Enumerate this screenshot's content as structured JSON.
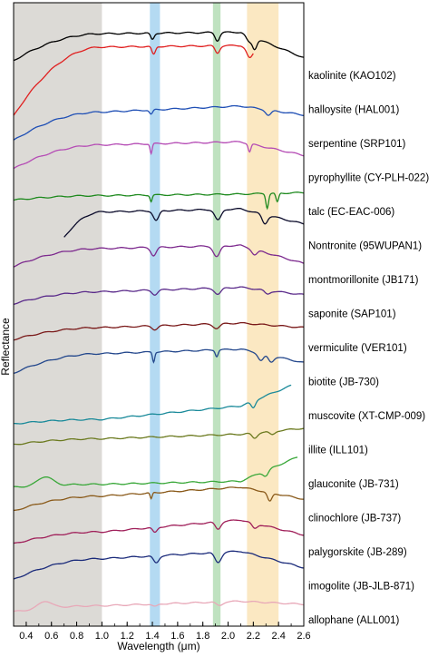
{
  "chart_data": {
    "type": "line",
    "xlabel": "Wavelength (μm)",
    "ylabel": "Reflectance",
    "xlim": [
      0.3,
      2.6
    ],
    "xticks": [
      "0.4",
      "0.6",
      "0.8",
      "1.0",
      "1.2",
      "1.4",
      "1.6",
      "1.8",
      "2.0",
      "2.2",
      "2.4",
      "2.6"
    ],
    "grid": false,
    "y_axis_ticks": false,
    "shaded_bands": [
      {
        "x": [
          0.3,
          1.0
        ],
        "color": "#dcdad6"
      },
      {
        "x": [
          1.38,
          1.46
        ],
        "color": "#b4daf2"
      },
      {
        "x": [
          1.88,
          1.94
        ],
        "color": "#bfe2c0"
      },
      {
        "x": [
          2.15,
          2.4
        ],
        "color": "#fbe8c2"
      }
    ],
    "series": [
      {
        "name": "kaolinite (KAO102)",
        "color": "#000000",
        "x_range": [
          0.3,
          2.6
        ],
        "start": 0.78,
        "rise": 0.96,
        "level": 0.97,
        "end": 0.8,
        "features": [
          {
            "x": 1.4,
            "d": 0.35,
            "w": 0.02
          },
          {
            "x": 1.915,
            "d": 0.45,
            "w": 0.025
          },
          {
            "x": 2.165,
            "d": 0.35,
            "w": 0.03
          },
          {
            "x": 2.21,
            "d": 0.6,
            "w": 0.025
          }
        ]
      },
      {
        "name": "halloysite (HAL001)",
        "color": "#e01f1f",
        "x_range": [
          0.3,
          2.2
        ],
        "start": 0.4,
        "rise": 0.86,
        "level": 0.87,
        "end": 0.7,
        "features": [
          {
            "x": 1.41,
            "d": 0.45,
            "w": 0.02
          },
          {
            "x": 1.915,
            "d": 0.4,
            "w": 0.025
          },
          {
            "x": 2.17,
            "d": 0.5,
            "w": 0.03
          }
        ]
      },
      {
        "name": "serpentine (SRP101)",
        "color": "#1f4fb5",
        "x_range": [
          0.3,
          2.6
        ],
        "start": 0.55,
        "rise": 0.74,
        "level": 0.78,
        "end": 0.72,
        "features": [
          {
            "x": 1.39,
            "d": 0.25,
            "w": 0.018
          },
          {
            "x": 2.32,
            "d": 0.3,
            "w": 0.03
          }
        ]
      },
      {
        "name": "pyrophyllite (CY-PLH-022)",
        "color": "#b54cb5",
        "x_range": [
          0.3,
          2.6
        ],
        "start": 0.55,
        "rise": 0.71,
        "level": 0.73,
        "end": 0.64,
        "features": [
          {
            "x": 1.39,
            "d": 0.55,
            "w": 0.012
          },
          {
            "x": 2.17,
            "d": 0.45,
            "w": 0.015
          }
        ]
      },
      {
        "name": "talc (EC-EAC-006)",
        "color": "#1f8a1f",
        "x_range": [
          0.3,
          2.6
        ],
        "start": 0.63,
        "rise": 0.66,
        "level": 0.67,
        "end": 0.68,
        "features": [
          {
            "x": 1.39,
            "d": 0.35,
            "w": 0.012
          },
          {
            "x": 2.31,
            "d": 0.8,
            "w": 0.015
          },
          {
            "x": 2.39,
            "d": 0.5,
            "w": 0.015
          }
        ]
      },
      {
        "name": "Nontronite (95WUPAN1)",
        "color": "#0a0a2a",
        "x_range": [
          0.7,
          2.6
        ],
        "start": 0.43,
        "rise": 0.6,
        "level": 0.62,
        "end": 0.52,
        "features": [
          {
            "x": 1.43,
            "d": 0.55,
            "w": 0.03
          },
          {
            "x": 1.92,
            "d": 0.6,
            "w": 0.035
          },
          {
            "x": 2.29,
            "d": 0.5,
            "w": 0.03
          }
        ]
      },
      {
        "name": "montmorillonite (JB171)",
        "color": "#7d2a8e",
        "x_range": [
          0.3,
          2.6
        ],
        "start": 0.43,
        "rise": 0.55,
        "level": 0.57,
        "end": 0.45,
        "features": [
          {
            "x": 1.41,
            "d": 0.45,
            "w": 0.03
          },
          {
            "x": 1.91,
            "d": 0.6,
            "w": 0.035
          },
          {
            "x": 2.21,
            "d": 0.3,
            "w": 0.03
          }
        ]
      },
      {
        "name": "saponite (SAP101)",
        "color": "#5a2a8a",
        "x_range": [
          0.3,
          2.6
        ],
        "start": 0.38,
        "rise": 0.46,
        "level": 0.49,
        "end": 0.44,
        "features": [
          {
            "x": 1.42,
            "d": 0.25,
            "w": 0.03
          },
          {
            "x": 1.92,
            "d": 0.35,
            "w": 0.035
          },
          {
            "x": 2.31,
            "d": 0.2,
            "w": 0.03
          }
        ]
      },
      {
        "name": "vermiculite (VER101)",
        "color": "#7a1a1a",
        "x_range": [
          0.3,
          2.6
        ],
        "start": 0.36,
        "rise": 0.44,
        "level": 0.47,
        "end": 0.44,
        "features": [
          {
            "x": 1.42,
            "d": 0.2,
            "w": 0.03
          },
          {
            "x": 1.91,
            "d": 0.25,
            "w": 0.035
          }
        ]
      },
      {
        "name": "biotite (JB-730)",
        "color": "#23478c",
        "x_range": [
          0.3,
          2.6
        ],
        "start": 0.25,
        "rise": 0.38,
        "level": 0.41,
        "end": 0.32,
        "features": [
          {
            "x": 1.41,
            "d": 0.55,
            "w": 0.012
          },
          {
            "x": 1.91,
            "d": 0.35,
            "w": 0.015
          },
          {
            "x": 2.26,
            "d": 0.4,
            "w": 0.03
          },
          {
            "x": 2.34,
            "d": 0.35,
            "w": 0.03
          }
        ]
      },
      {
        "name": "muscovite (XT-CMP-009)",
        "color": "#1a8a9a",
        "x_range": [
          0.3,
          2.5
        ],
        "start": 0.15,
        "rise": 0.18,
        "level": 0.27,
        "end": 0.44,
        "features": [
          {
            "x": 2.2,
            "d": 0.4,
            "w": 0.025
          }
        ]
      },
      {
        "name": "illite (ILL101)",
        "color": "#6b7a1f",
        "x_range": [
          0.3,
          2.6
        ],
        "start": 0.2,
        "rise": 0.24,
        "level": 0.27,
        "end": 0.31,
        "features": [
          {
            "x": 2.21,
            "d": 0.3,
            "w": 0.03
          },
          {
            "x": 2.35,
            "d": 0.2,
            "w": 0.03
          }
        ]
      },
      {
        "name": "glauconite (JB-731)",
        "color": "#3aa83a",
        "x_range": [
          0.3,
          2.55
        ],
        "start": 0.16,
        "rise": 0.18,
        "level": 0.2,
        "end": 0.38,
        "features": [
          {
            "x": 0.55,
            "d": -0.5,
            "w": 0.08
          },
          {
            "x": 2.3,
            "d": 0.3,
            "w": 0.03
          }
        ]
      },
      {
        "name": "clinochlore (JB-737)",
        "color": "#8a5a1a",
        "x_range": [
          0.3,
          2.6
        ],
        "start": 0.1,
        "rise": 0.2,
        "level": 0.26,
        "end": 0.18,
        "features": [
          {
            "x": 1.39,
            "d": 0.35,
            "w": 0.012
          },
          {
            "x": 2.33,
            "d": 0.5,
            "w": 0.025
          }
        ]
      },
      {
        "name": "palygorskite (JB-289)",
        "color": "#a0205a",
        "x_range": [
          0.3,
          2.6
        ],
        "start": 0.04,
        "rise": 0.12,
        "level": 0.2,
        "end": 0.1,
        "features": [
          {
            "x": 1.42,
            "d": 0.3,
            "w": 0.025
          },
          {
            "x": 1.92,
            "d": 0.4,
            "w": 0.03
          },
          {
            "x": 2.21,
            "d": 0.3,
            "w": 0.03
          }
        ]
      },
      {
        "name": "imogolite (JB-JLB-871)",
        "color": "#1a2a7a",
        "x_range": [
          0.3,
          2.6
        ],
        "start": 0.02,
        "rise": 0.16,
        "level": 0.21,
        "end": 0.1,
        "features": [
          {
            "x": 1.43,
            "d": 0.4,
            "w": 0.03
          },
          {
            "x": 1.92,
            "d": 0.55,
            "w": 0.035
          }
        ]
      },
      {
        "name": "allophane (ALL001)",
        "color": "#e8a8b8",
        "x_range": [
          0.3,
          2.6
        ],
        "start": 0.05,
        "rise": 0.09,
        "level": 0.12,
        "end": 0.1,
        "features": [
          {
            "x": 0.55,
            "d": -0.4,
            "w": 0.07
          },
          {
            "x": 1.42,
            "d": 0.15,
            "w": 0.03
          },
          {
            "x": 1.93,
            "d": 0.2,
            "w": 0.035
          }
        ]
      }
    ]
  }
}
